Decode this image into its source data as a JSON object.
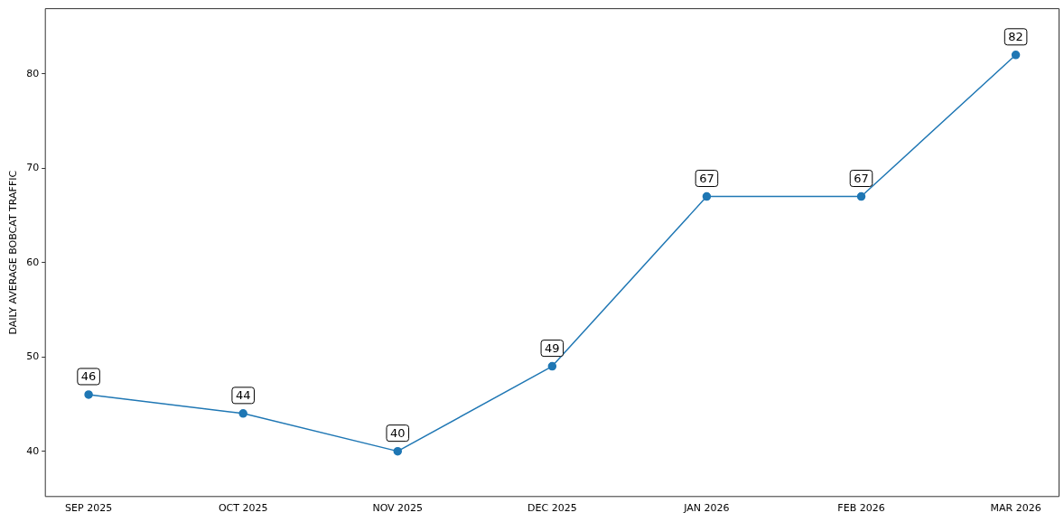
{
  "chart_data": {
    "type": "line",
    "ylabel": "DAILY AVERAGE BOBCAT TRAFFIC",
    "categories": [
      "SEP 2025",
      "OCT 2025",
      "NOV 2025",
      "DEC 2025",
      "JAN 2026",
      "FEB 2026",
      "MAR 2026"
    ],
    "series": [
      {
        "color": "#1f77b4",
        "values": [
          46,
          44,
          40,
          49,
          67,
          67,
          82
        ]
      }
    ],
    "ylim": [
      35.2,
      86.9
    ],
    "yticks": [
      40,
      50,
      60,
      70,
      80
    ],
    "marker": "circle",
    "line_style": "solid",
    "data_labels": true,
    "grid": false,
    "legend": false
  }
}
